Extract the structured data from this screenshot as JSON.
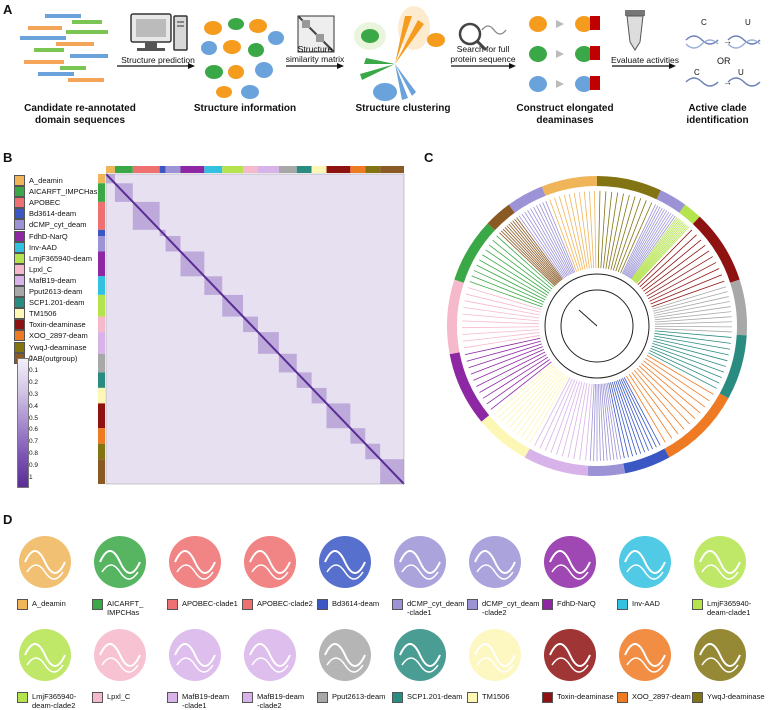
{
  "panels": {
    "a": "A",
    "b": "B",
    "c": "C",
    "d": "D"
  },
  "panel_a": {
    "arrow_labels": [
      "Structure prediction",
      "Structure\nsimilarity matrix",
      "Search for full\nprotein sequence",
      "Evaluate activities"
    ],
    "steps": [
      "Candidate re-annotated\ndomain sequences",
      "Structure information",
      "Structure clustering",
      "Construct elongated\ndeaminases",
      "Active clade\nidentification"
    ],
    "base_from": "C",
    "base_to": "U",
    "or_label": "OR",
    "arrow_symbol": "→"
  },
  "panel_b": {
    "legend": [
      {
        "label": "A_deamin",
        "color": "#f0b559"
      },
      {
        "label": "AICARFT_IMPCHas",
        "color": "#3aa846"
      },
      {
        "label": "APOBEC",
        "color": "#ee7070"
      },
      {
        "label": "Bd3614-deam",
        "color": "#3b57c4"
      },
      {
        "label": "dCMP_cyt_deam",
        "color": "#9b93d6"
      },
      {
        "label": "FdhD-NarQ",
        "color": "#8e27a4"
      },
      {
        "label": "Inv-AAD",
        "color": "#32c1e0"
      },
      {
        "label": "LmjF365940-deam",
        "color": "#b4e34e"
      },
      {
        "label": "Lpxl_C",
        "color": "#f6b9cb"
      },
      {
        "label": "MafB19-deam",
        "color": "#d7b3e9"
      },
      {
        "label": "Pput2613-deam",
        "color": "#a8a8a8"
      },
      {
        "label": "SCP1.201-deam",
        "color": "#2a8c80"
      },
      {
        "label": "TM1506",
        "color": "#fdf7b6"
      },
      {
        "label": "Toxin-deaminase",
        "color": "#8e1212"
      },
      {
        "label": "XOO_2897-deam",
        "color": "#ee7a23"
      },
      {
        "label": "YwqJ-deaminase",
        "color": "#837413"
      },
      {
        "label": "JAB(outgroup)",
        "color": "#8a5a24"
      }
    ],
    "scale": [
      "0",
      "0.1",
      "0.2",
      "0.3",
      "0.4",
      "0.5",
      "0.6",
      "0.7",
      "0.8",
      "0.9",
      "1"
    ]
  },
  "panel_d": {
    "structures": [
      {
        "label": "A_deamin",
        "color": "#f0b559"
      },
      {
        "label": "AICARFT_\nIMPCHas",
        "color": "#3aa846"
      },
      {
        "label": "APOBEC-clade1",
        "color": "#ee7070"
      },
      {
        "label": "APOBEC-clade2",
        "color": "#ee7070"
      },
      {
        "label": "Bd3614-deam",
        "color": "#3b57c4"
      },
      {
        "label": "dCMP_cyt_deam\n-clade1",
        "color": "#9b93d6"
      },
      {
        "label": "dCMP_cyt_deam\n-clade2",
        "color": "#9b93d6"
      },
      {
        "label": "FdhD-NarQ",
        "color": "#8e27a4"
      },
      {
        "label": "Inv-AAD",
        "color": "#32c1e0"
      },
      {
        "label": "LmjF365940-\ndeam-clade1",
        "color": "#b4e34e"
      },
      {
        "label": "LmjF365940-\ndeam-clade2",
        "color": "#b4e34e"
      },
      {
        "label": "Lpxl_C",
        "color": "#f6b9cb"
      },
      {
        "label": "MafB19-deam\n-clade1",
        "color": "#d7b3e9"
      },
      {
        "label": "MafB19-deam\n-clade2",
        "color": "#d7b3e9"
      },
      {
        "label": "Pput2613-deam",
        "color": "#a8a8a8"
      },
      {
        "label": "SCP1.201-deam",
        "color": "#2a8c80"
      },
      {
        "label": "TM1506",
        "color": "#fdf7b6"
      },
      {
        "label": "Toxin-deaminase",
        "color": "#8e1212"
      },
      {
        "label": "XOO_2897-deam",
        "color": "#ee7a23"
      },
      {
        "label": "YwqJ-deaminase",
        "color": "#837413"
      }
    ]
  }
}
